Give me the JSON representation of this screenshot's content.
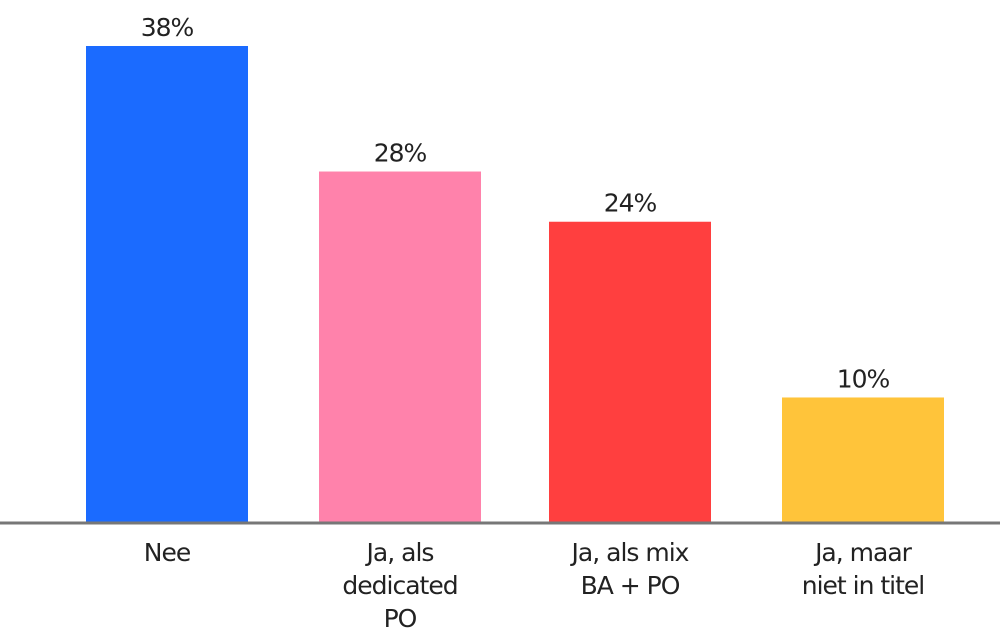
{
  "chart_data": {
    "type": "bar",
    "categories": [
      [
        "Nee"
      ],
      [
        "Ja, als",
        "dedicated",
        "PO"
      ],
      [
        "Ja, als mix",
        "BA + PO"
      ],
      [
        "Ja, maar",
        "niet in titel"
      ]
    ],
    "values": [
      38,
      28,
      24,
      10
    ],
    "value_labels": [
      "38%",
      "28%",
      "24%",
      "10%"
    ],
    "bar_colors": [
      "#1b6bff",
      "#ff82ab",
      "#ff3f3f",
      "#ffc43a"
    ],
    "baseline_color": "#777777",
    "ylim": [
      0,
      38
    ],
    "unit": "%",
    "title": "",
    "xlabel": "",
    "ylabel": "",
    "grid": false,
    "legend": "none"
  }
}
